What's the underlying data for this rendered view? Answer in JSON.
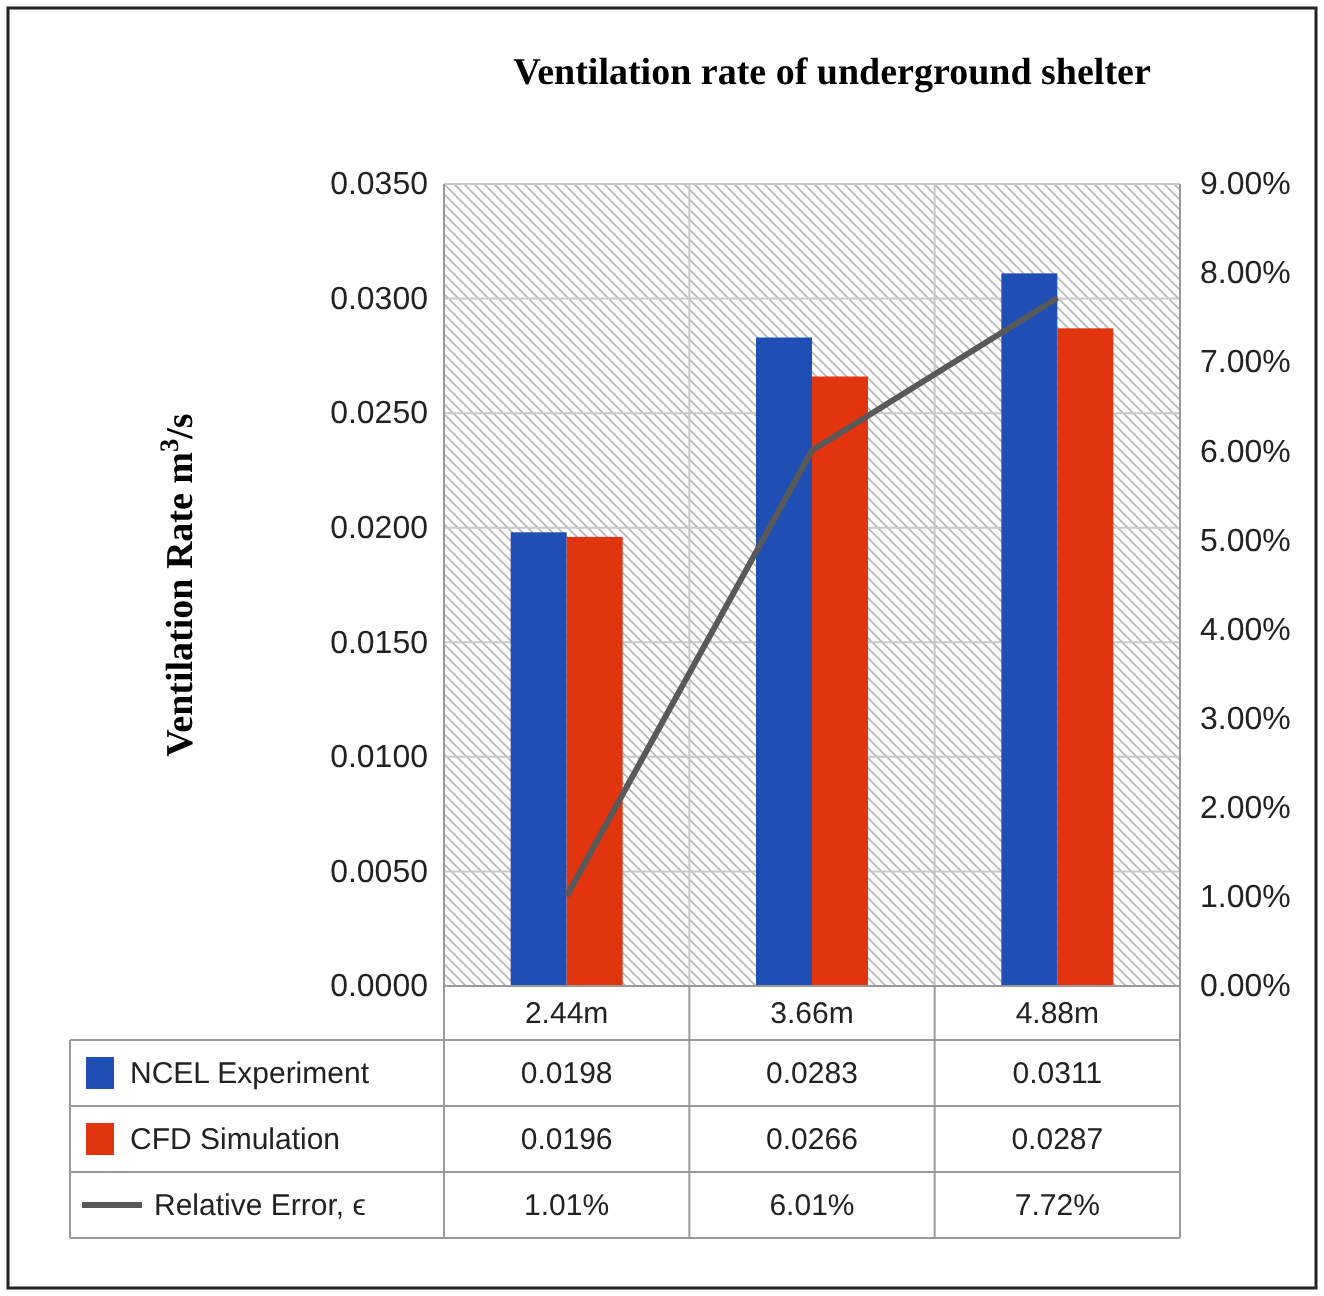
{
  "chart_data": {
    "type": "bar",
    "title": "Ventilation rate of underground shelter",
    "ylabel": "Ventilation Rate m$^{3}$/s",
    "categories": [
      "2.44m",
      "3.66m",
      "4.88m"
    ],
    "series": [
      {
        "name": "NCEL Experiment",
        "color": "#1f4eb4",
        "values": [
          0.0198,
          0.0283,
          0.0311
        ],
        "value_labels": [
          "0.0198",
          "0.0283",
          "0.0311"
        ]
      },
      {
        "name": "CFD Simulation",
        "color": "#e2340f",
        "values": [
          0.0196,
          0.0266,
          0.0287
        ],
        "value_labels": [
          "0.0196",
          "0.0266",
          "0.0287"
        ]
      },
      {
        "name": "Relative Error, ϵ",
        "type": "line",
        "axis": "y2",
        "color": "#595959",
        "values": [
          1.01,
          6.01,
          7.72
        ],
        "value_labels": [
          "1.01%",
          "6.01%",
          "7.72%"
        ]
      }
    ],
    "ylim": [
      0,
      0.035
    ],
    "yticks": [
      {
        "value": 0,
        "label": "0.0000"
      },
      {
        "value": 0.005,
        "label": "0.0050"
      },
      {
        "value": 0.01,
        "label": "0.0100"
      },
      {
        "value": 0.015,
        "label": "0.0150"
      },
      {
        "value": 0.02,
        "label": "0.0200"
      },
      {
        "value": 0.025,
        "label": "0.0250"
      },
      {
        "value": 0.03,
        "label": "0.0300"
      },
      {
        "value": 0.035,
        "label": "0.0350"
      }
    ],
    "y2lim": [
      0,
      9
    ],
    "y2ticks": [
      {
        "value": 0,
        "label": "0.00%"
      },
      {
        "value": 1,
        "label": "1.00%"
      },
      {
        "value": 2,
        "label": "2.00%"
      },
      {
        "value": 3,
        "label": "3.00%"
      },
      {
        "value": 4,
        "label": "4.00%"
      },
      {
        "value": 5,
        "label": "5.00%"
      },
      {
        "value": 6,
        "label": "6.00%"
      },
      {
        "value": 7,
        "label": "7.00%"
      },
      {
        "value": 8,
        "label": "8.00%"
      },
      {
        "value": 9,
        "label": "9.00%"
      }
    ],
    "grid": true,
    "legend": "bottom",
    "marker": "none",
    "line_style": "solid"
  }
}
